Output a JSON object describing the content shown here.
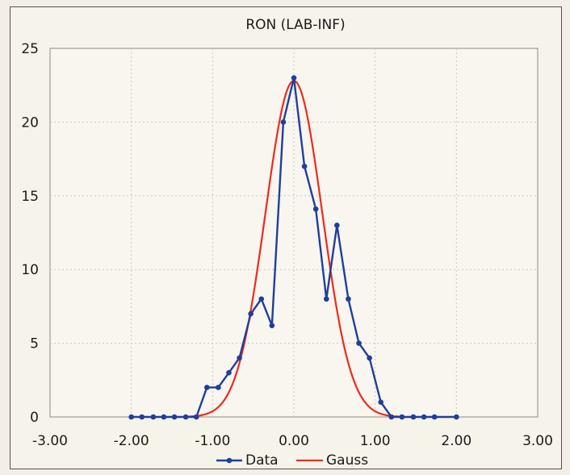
{
  "chart_data": {
    "type": "line",
    "title": "RON (LAB-INF)",
    "xlim": [
      -3,
      3
    ],
    "ylim": [
      0,
      25
    ],
    "x_ticks": [
      "-3.00",
      "-2.00",
      "-1.00",
      "0.00",
      "1.00",
      "2.00",
      "3.00"
    ],
    "y_ticks": [
      "0",
      "5",
      "10",
      "15",
      "20",
      "25"
    ],
    "grid": true,
    "legend_position": "bottom",
    "series": [
      {
        "name": "Data",
        "color": "#1f3f9a",
        "marker": "dot",
        "x": [
          -2.0,
          -1.87,
          -1.73,
          -1.6,
          -1.47,
          -1.33,
          -1.2,
          -1.07,
          -0.93,
          -0.8,
          -0.67,
          -0.53,
          -0.4,
          -0.27,
          -0.13,
          0.0,
          0.13,
          0.27,
          0.4,
          0.53,
          0.67,
          0.8,
          0.93,
          1.07,
          1.2,
          1.33,
          1.47,
          1.6,
          1.73,
          2.0
        ],
        "y": [
          0,
          0,
          0,
          0,
          0,
          0,
          0,
          2,
          2,
          3,
          4,
          7,
          8,
          6.2,
          20,
          23,
          17,
          14.1,
          8,
          13,
          8,
          5,
          4,
          1,
          0,
          0,
          0,
          0,
          0,
          0
        ]
      },
      {
        "name": "Gauss",
        "color": "#ee2a1d",
        "marker": "none",
        "mean": 0.0,
        "sigma": 0.35,
        "amplitude": 22.8
      }
    ]
  }
}
